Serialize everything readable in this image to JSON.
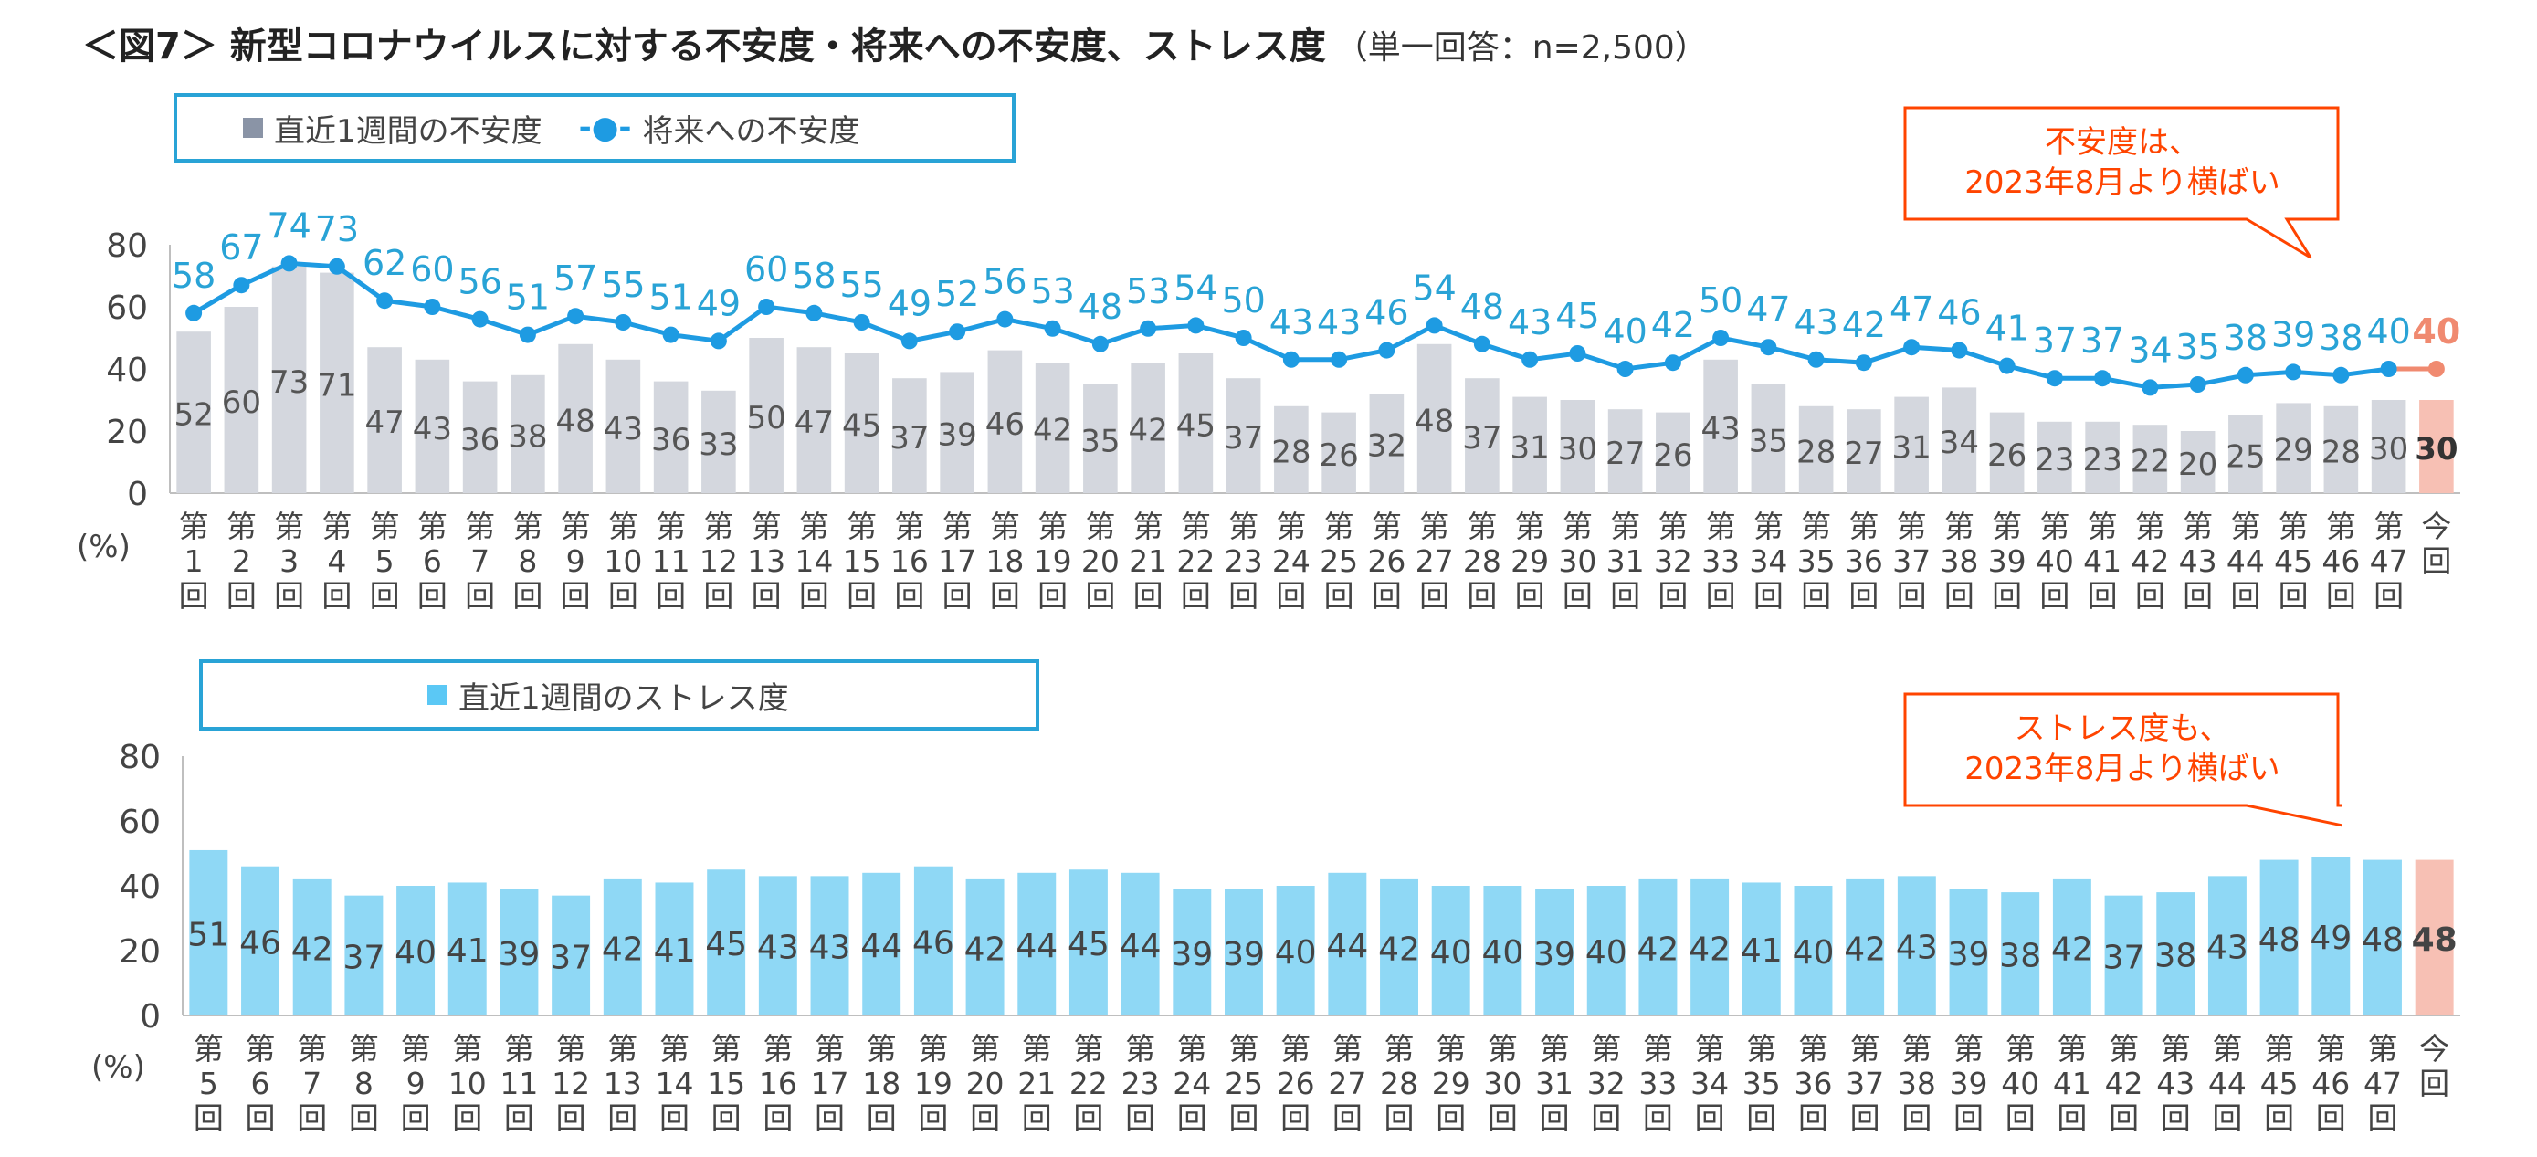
{
  "title": {
    "main": "＜図7＞ 新型コロナウイルスに対する不安度・将来への不安度、ストレス度",
    "sub": "（単一回答：n=2,500）"
  },
  "legend1": {
    "bar_label": "直近1週間の不安度",
    "line_label": "将来への不安度",
    "line_prefix": "-●-"
  },
  "legend2": {
    "bar_label": "直近1週間のストレス度"
  },
  "callout1": {
    "line1": "不安度は、",
    "line2": "2023年8月より横ばい"
  },
  "callout2": {
    "line1": "ストレス度も、",
    "line2": "2023年8月より横ばい"
  },
  "colors": {
    "bar_gray": "#d4d7de",
    "line_blue": "#1e9be2",
    "label_blue": "#29a3d6",
    "highlight": "#f7c0b4",
    "highlight_text": "#f08a70",
    "stress_bar": "#8fd8f5",
    "callout_red": "#ff4400"
  },
  "chart_data": [
    {
      "type": "bar+line",
      "title": "不安度・将来への不安度",
      "ylabel": "(%)",
      "ylim": [
        0,
        80
      ],
      "yticks": [
        0,
        20,
        40,
        60,
        80
      ],
      "categories": [
        "第1回",
        "第2回",
        "第3回",
        "第4回",
        "第5回",
        "第6回",
        "第7回",
        "第8回",
        "第9回",
        "第10回",
        "第11回",
        "第12回",
        "第13回",
        "第14回",
        "第15回",
        "第16回",
        "第17回",
        "第18回",
        "第19回",
        "第20回",
        "第21回",
        "第22回",
        "第23回",
        "第24回",
        "第25回",
        "第26回",
        "第27回",
        "第28回",
        "第29回",
        "第30回",
        "第31回",
        "第32回",
        "第33回",
        "第34回",
        "第35回",
        "第36回",
        "第37回",
        "第38回",
        "第39回",
        "第40回",
        "第41回",
        "第42回",
        "第43回",
        "第44回",
        "第45回",
        "第46回",
        "第47回",
        "今回"
      ],
      "series": [
        {
          "name": "直近1週間の不安度",
          "kind": "bar",
          "values": [
            52,
            60,
            73,
            71,
            47,
            43,
            36,
            38,
            48,
            43,
            36,
            33,
            50,
            47,
            45,
            37,
            39,
            46,
            42,
            35,
            42,
            45,
            37,
            28,
            26,
            32,
            48,
            37,
            31,
            30,
            27,
            26,
            43,
            35,
            28,
            27,
            31,
            34,
            26,
            23,
            23,
            22,
            20,
            25,
            29,
            28,
            30,
            30
          ]
        },
        {
          "name": "将来への不安度",
          "kind": "line",
          "values": [
            58,
            67,
            74,
            73,
            62,
            60,
            56,
            51,
            57,
            55,
            51,
            49,
            60,
            58,
            55,
            49,
            52,
            56,
            53,
            48,
            53,
            54,
            50,
            43,
            43,
            46,
            54,
            48,
            43,
            45,
            40,
            42,
            50,
            47,
            43,
            42,
            47,
            46,
            41,
            37,
            37,
            34,
            35,
            38,
            39,
            38,
            40,
            40
          ]
        }
      ]
    },
    {
      "type": "bar",
      "title": "ストレス度",
      "ylabel": "(%)",
      "ylim": [
        0,
        80
      ],
      "yticks": [
        0,
        20,
        40,
        60,
        80
      ],
      "categories": [
        "第5回",
        "第6回",
        "第7回",
        "第8回",
        "第9回",
        "第10回",
        "第11回",
        "第12回",
        "第13回",
        "第14回",
        "第15回",
        "第16回",
        "第17回",
        "第18回",
        "第19回",
        "第20回",
        "第21回",
        "第22回",
        "第23回",
        "第24回",
        "第25回",
        "第26回",
        "第27回",
        "第28回",
        "第29回",
        "第30回",
        "第31回",
        "第32回",
        "第33回",
        "第34回",
        "第35回",
        "第36回",
        "第37回",
        "第38回",
        "第39回",
        "第40回",
        "第41回",
        "第42回",
        "第43回",
        "第44回",
        "第45回",
        "第46回",
        "第47回",
        "今回"
      ],
      "series": [
        {
          "name": "直近1週間のストレス度",
          "kind": "bar",
          "values": [
            51,
            46,
            42,
            37,
            40,
            41,
            39,
            37,
            42,
            41,
            45,
            43,
            43,
            44,
            46,
            42,
            44,
            45,
            44,
            39,
            39,
            40,
            44,
            42,
            40,
            40,
            39,
            40,
            42,
            42,
            41,
            40,
            42,
            43,
            39,
            38,
            42,
            37,
            38,
            43,
            48,
            49,
            48,
            48
          ]
        }
      ]
    }
  ]
}
